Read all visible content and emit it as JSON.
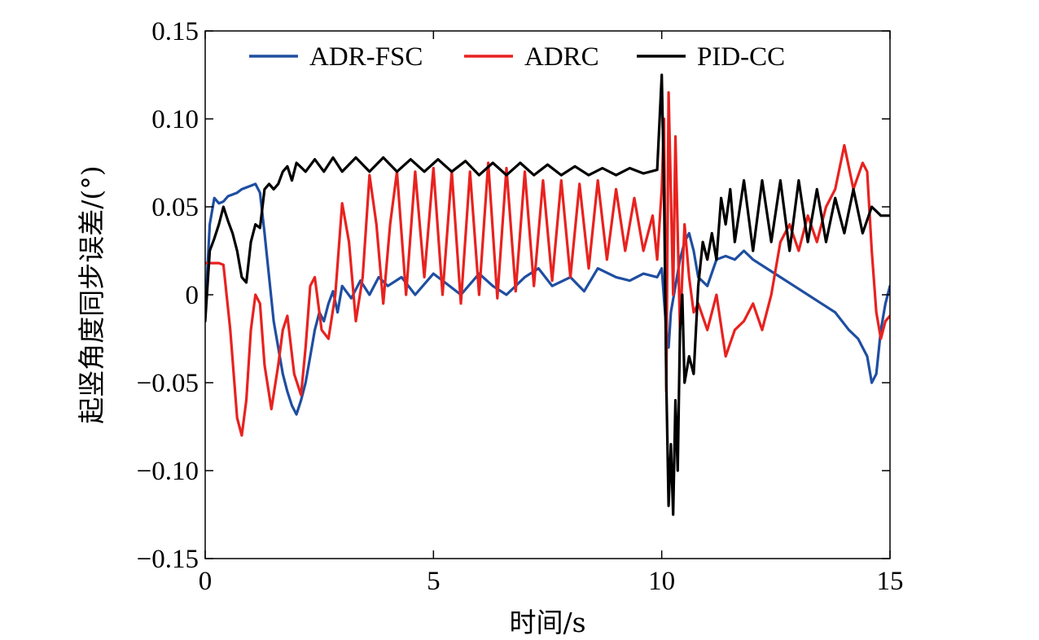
{
  "chart_data": {
    "type": "line",
    "title": "",
    "xlabel": "时间/s",
    "ylabel": "起竖角度同步误差/(°)",
    "xlim": [
      0,
      15
    ],
    "ylim": [
      -0.15,
      0.15
    ],
    "x_ticks": [
      0,
      5,
      10,
      15
    ],
    "x_tick_labels": [
      "0",
      "5",
      "10",
      "15"
    ],
    "y_ticks": [
      -0.15,
      -0.1,
      -0.05,
      0,
      0.05,
      0.1,
      0.15
    ],
    "y_tick_labels": [
      "−0.15",
      "−0.10",
      "−0.05",
      "0",
      "0.05",
      "0.10",
      "0.15"
    ],
    "grid": false,
    "legend_position": "top",
    "series": [
      {
        "name": "ADR-FSC",
        "color": "#1f4ea1",
        "x": [
          0,
          0.05,
          0.1,
          0.2,
          0.3,
          0.4,
          0.5,
          0.6,
          0.7,
          0.8,
          0.9,
          1.0,
          1.1,
          1.2,
          1.3,
          1.4,
          1.5,
          1.6,
          1.7,
          1.8,
          1.9,
          2.0,
          2.1,
          2.2,
          2.3,
          2.4,
          2.5,
          2.6,
          2.7,
          2.8,
          2.9,
          3.0,
          3.2,
          3.4,
          3.6,
          3.8,
          4.0,
          4.3,
          4.6,
          5.0,
          5.3,
          5.6,
          6.0,
          6.3,
          6.6,
          7.0,
          7.3,
          7.6,
          8.0,
          8.3,
          8.6,
          9.0,
          9.3,
          9.6,
          9.9,
          10.0,
          10.1,
          10.15,
          10.2,
          10.3,
          10.4,
          10.5,
          10.6,
          10.7,
          10.8,
          11.0,
          11.2,
          11.4,
          11.6,
          11.8,
          12.0,
          12.3,
          12.6,
          12.9,
          13.2,
          13.5,
          13.8,
          14.1,
          14.3,
          14.5,
          14.6,
          14.7,
          14.8,
          14.9,
          15.0
        ],
        "y": [
          -0.013,
          0.015,
          0.04,
          0.055,
          0.052,
          0.053,
          0.056,
          0.057,
          0.058,
          0.06,
          0.061,
          0.062,
          0.063,
          0.058,
          0.035,
          0.01,
          -0.015,
          -0.03,
          -0.045,
          -0.055,
          -0.063,
          -0.068,
          -0.06,
          -0.05,
          -0.035,
          -0.02,
          -0.01,
          -0.015,
          -0.005,
          0.002,
          -0.01,
          0.005,
          -0.002,
          0.008,
          0.0,
          0.01,
          0.005,
          0.01,
          0.0,
          0.012,
          0.006,
          0.0,
          0.012,
          0.005,
          0.0,
          0.01,
          0.015,
          0.005,
          0.01,
          0.002,
          0.015,
          0.01,
          0.008,
          0.012,
          0.01,
          0.015,
          -0.02,
          -0.03,
          -0.01,
          0.005,
          0.02,
          0.03,
          0.035,
          0.025,
          0.01,
          0.005,
          0.02,
          0.022,
          0.02,
          0.025,
          0.02,
          0.015,
          0.01,
          0.005,
          0.0,
          -0.005,
          -0.01,
          -0.02,
          -0.025,
          -0.035,
          -0.05,
          -0.045,
          -0.02,
          -0.005,
          0.005
        ]
      },
      {
        "name": "ADRC",
        "color": "#e8221f",
        "x": [
          0,
          0.3,
          0.4,
          0.55,
          0.7,
          0.8,
          0.9,
          1.0,
          1.1,
          1.2,
          1.3,
          1.45,
          1.6,
          1.7,
          1.8,
          1.95,
          2.1,
          2.2,
          2.3,
          2.4,
          2.55,
          2.7,
          2.85,
          3.0,
          3.15,
          3.3,
          3.45,
          3.6,
          3.75,
          3.9,
          4.05,
          4.2,
          4.4,
          4.6,
          4.8,
          5.0,
          5.2,
          5.4,
          5.6,
          5.8,
          6.0,
          6.2,
          6.4,
          6.6,
          6.8,
          7.0,
          7.2,
          7.4,
          7.6,
          7.8,
          8.0,
          8.2,
          8.4,
          8.6,
          8.8,
          9.0,
          9.2,
          9.4,
          9.6,
          9.8,
          9.9,
          10.0,
          10.05,
          10.1,
          10.15,
          10.25,
          10.3,
          10.4,
          10.5,
          10.6,
          10.7,
          10.8,
          11.0,
          11.2,
          11.4,
          11.6,
          11.8,
          12.0,
          12.2,
          12.4,
          12.6,
          12.8,
          13.0,
          13.2,
          13.4,
          13.6,
          13.8,
          14.0,
          14.2,
          14.4,
          14.5,
          14.6,
          14.7,
          14.8,
          14.9,
          15.0
        ],
        "y": [
          0.018,
          0.018,
          0.017,
          -0.02,
          -0.07,
          -0.08,
          -0.06,
          -0.02,
          0.0,
          -0.005,
          -0.04,
          -0.065,
          -0.04,
          -0.02,
          -0.012,
          -0.045,
          -0.057,
          -0.03,
          0.005,
          0.01,
          -0.02,
          -0.025,
          0.0,
          0.052,
          0.03,
          -0.015,
          0.01,
          0.068,
          0.04,
          -0.005,
          0.04,
          0.07,
          0.0,
          0.07,
          0.01,
          0.072,
          0.0,
          0.07,
          -0.005,
          0.07,
          0.0,
          0.075,
          -0.002,
          0.072,
          0.002,
          0.07,
          0.005,
          0.065,
          0.008,
          0.065,
          0.01,
          0.063,
          0.015,
          0.065,
          0.02,
          0.06,
          0.025,
          0.055,
          0.025,
          0.045,
          0.02,
          0.06,
          0.1,
          -0.055,
          0.115,
          0.0,
          0.09,
          -0.02,
          0.04,
          0.01,
          -0.01,
          -0.005,
          -0.02,
          0.0,
          -0.035,
          -0.02,
          -0.015,
          -0.005,
          -0.02,
          0.0,
          0.03,
          0.04,
          0.025,
          0.045,
          0.03,
          0.05,
          0.06,
          0.085,
          0.06,
          0.075,
          0.07,
          0.025,
          -0.01,
          -0.025,
          -0.015,
          -0.012
        ]
      },
      {
        "name": "PID-CC",
        "color": "#000000",
        "x": [
          0,
          0.1,
          0.2,
          0.3,
          0.4,
          0.5,
          0.6,
          0.7,
          0.8,
          0.9,
          1.0,
          1.1,
          1.2,
          1.3,
          1.4,
          1.5,
          1.6,
          1.7,
          1.8,
          1.9,
          2.0,
          2.2,
          2.4,
          2.6,
          2.8,
          3.0,
          3.3,
          3.6,
          3.9,
          4.2,
          4.5,
          4.8,
          5.1,
          5.4,
          5.7,
          6.0,
          6.3,
          6.6,
          6.9,
          7.2,
          7.5,
          7.8,
          8.1,
          8.4,
          8.7,
          9.0,
          9.3,
          9.6,
          9.9,
          10.0,
          10.05,
          10.1,
          10.15,
          10.2,
          10.25,
          10.3,
          10.35,
          10.4,
          10.45,
          10.5,
          10.6,
          10.7,
          10.8,
          10.9,
          11.0,
          11.1,
          11.2,
          11.3,
          11.4,
          11.5,
          11.6,
          11.8,
          12.0,
          12.2,
          12.4,
          12.6,
          12.8,
          13.0,
          13.2,
          13.4,
          13.6,
          13.8,
          14.0,
          14.2,
          14.4,
          14.6,
          14.8,
          15.0
        ],
        "y": [
          -0.015,
          0.025,
          0.032,
          0.04,
          0.05,
          0.042,
          0.035,
          0.025,
          0.01,
          0.007,
          0.03,
          0.04,
          0.038,
          0.06,
          0.063,
          0.06,
          0.063,
          0.07,
          0.073,
          0.065,
          0.075,
          0.07,
          0.077,
          0.07,
          0.078,
          0.07,
          0.078,
          0.07,
          0.078,
          0.07,
          0.077,
          0.07,
          0.077,
          0.07,
          0.076,
          0.068,
          0.075,
          0.068,
          0.075,
          0.068,
          0.074,
          0.068,
          0.073,
          0.068,
          0.072,
          0.068,
          0.072,
          0.069,
          0.071,
          0.125,
          0.06,
          -0.05,
          -0.12,
          -0.085,
          -0.125,
          -0.06,
          -0.1,
          -0.02,
          0.0,
          -0.05,
          -0.035,
          -0.045,
          0.005,
          0.03,
          0.02,
          0.035,
          0.02,
          0.055,
          0.04,
          0.06,
          0.03,
          0.065,
          0.025,
          0.065,
          0.03,
          0.065,
          0.025,
          0.065,
          0.03,
          0.06,
          0.03,
          0.055,
          0.035,
          0.06,
          0.035,
          0.05,
          0.045,
          0.045
        ]
      }
    ]
  }
}
